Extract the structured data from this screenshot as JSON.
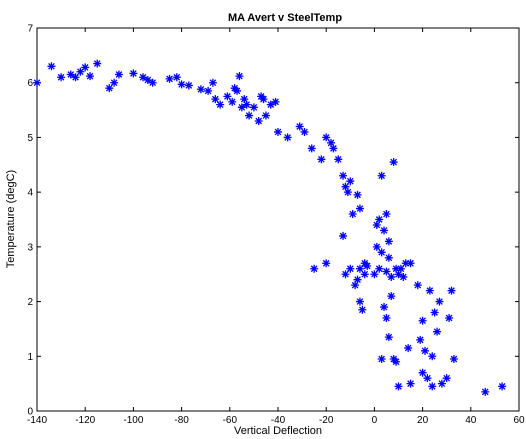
{
  "chart_data": {
    "type": "scatter",
    "title": "MA Avert v SteelTemp",
    "xlabel": "Vertical Deflection",
    "ylabel": "Temperature (degC)",
    "xlim": [
      -140,
      60
    ],
    "ylim": [
      0,
      7
    ],
    "xticks": [
      -140,
      -120,
      -100,
      -80,
      -60,
      -40,
      -20,
      0,
      20,
      40,
      60
    ],
    "yticks": [
      0,
      1,
      2,
      3,
      4,
      5,
      6,
      7
    ],
    "grid": false,
    "marker": "asterisk",
    "marker_color": "#0000ff",
    "points": [
      [
        -140,
        6.0
      ],
      [
        -134,
        6.3
      ],
      [
        -130,
        6.1
      ],
      [
        -126,
        6.15
      ],
      [
        -124,
        6.1
      ],
      [
        -122,
        6.2
      ],
      [
        -120,
        6.28
      ],
      [
        -118,
        6.12
      ],
      [
        -115,
        6.35
      ],
      [
        -110,
        5.9
      ],
      [
        -108,
        6.0
      ],
      [
        -106,
        6.15
      ],
      [
        -100,
        6.17
      ],
      [
        -96,
        6.1
      ],
      [
        -94,
        6.05
      ],
      [
        -92,
        6.0
      ],
      [
        -85,
        6.07
      ],
      [
        -82,
        6.1
      ],
      [
        -80,
        5.97
      ],
      [
        -77,
        5.95
      ],
      [
        -72,
        5.88
      ],
      [
        -69,
        5.85
      ],
      [
        -67,
        6.0
      ],
      [
        -66,
        5.7
      ],
      [
        -64,
        5.6
      ],
      [
        -61,
        5.75
      ],
      [
        -59,
        5.65
      ],
      [
        -58,
        5.9
      ],
      [
        -57,
        5.85
      ],
      [
        -56,
        6.12
      ],
      [
        -55,
        5.55
      ],
      [
        -54,
        5.7
      ],
      [
        -53,
        5.6
      ],
      [
        -52,
        5.4
      ],
      [
        -50,
        5.55
      ],
      [
        -48,
        5.3
      ],
      [
        -47,
        5.75
      ],
      [
        -46,
        5.7
      ],
      [
        -45,
        5.4
      ],
      [
        -43,
        5.6
      ],
      [
        -41,
        5.65
      ],
      [
        -40,
        5.1
      ],
      [
        -36,
        5.0
      ],
      [
        -31,
        5.2
      ],
      [
        -29,
        5.1
      ],
      [
        -26,
        4.8
      ],
      [
        -22,
        4.6
      ],
      [
        -20,
        5.0
      ],
      [
        -18,
        4.9
      ],
      [
        -17,
        4.8
      ],
      [
        -15,
        4.6
      ],
      [
        -13,
        4.3
      ],
      [
        -12,
        4.1
      ],
      [
        -11,
        4.0
      ],
      [
        -10,
        4.2
      ],
      [
        -9,
        3.6
      ],
      [
        -7,
        3.95
      ],
      [
        -6,
        3.7
      ],
      [
        -25,
        2.6
      ],
      [
        -20,
        2.7
      ],
      [
        -13,
        3.2
      ],
      [
        -12,
        2.5
      ],
      [
        -10,
        2.6
      ],
      [
        -8,
        2.3
      ],
      [
        -7,
        2.4
      ],
      [
        -6,
        2.6
      ],
      [
        -4,
        2.7
      ],
      [
        -3,
        2.65
      ],
      [
        0,
        2.5
      ],
      [
        1,
        3.4
      ],
      [
        1,
        3.0
      ],
      [
        2,
        2.6
      ],
      [
        2,
        3.5
      ],
      [
        3,
        4.3
      ],
      [
        3,
        2.9
      ],
      [
        4,
        3.3
      ],
      [
        5,
        3.6
      ],
      [
        5,
        2.55
      ],
      [
        6,
        3.1
      ],
      [
        6,
        2.8
      ],
      [
        7,
        2.45
      ],
      [
        8,
        4.55
      ],
      [
        9,
        2.6
      ],
      [
        10,
        2.5
      ],
      [
        11,
        2.6
      ],
      [
        12,
        2.45
      ],
      [
        13,
        2.7
      ],
      [
        15,
        2.7
      ],
      [
        -6,
        2.0
      ],
      [
        -5,
        1.85
      ],
      [
        -4,
        2.5
      ],
      [
        3,
        0.95
      ],
      [
        4,
        1.9
      ],
      [
        5,
        1.7
      ],
      [
        6,
        1.35
      ],
      [
        7,
        2.1
      ],
      [
        8,
        0.95
      ],
      [
        9,
        0.9
      ],
      [
        10,
        0.45
      ],
      [
        14,
        1.15
      ],
      [
        15,
        0.5
      ],
      [
        18,
        2.3
      ],
      [
        19,
        1.3
      ],
      [
        20,
        0.7
      ],
      [
        20,
        1.65
      ],
      [
        21,
        1.1
      ],
      [
        22,
        0.6
      ],
      [
        23,
        2.2
      ],
      [
        24,
        1.0
      ],
      [
        24,
        0.45
      ],
      [
        25,
        1.8
      ],
      [
        26,
        1.45
      ],
      [
        27,
        2.0
      ],
      [
        28,
        0.5
      ],
      [
        30,
        0.6
      ],
      [
        31,
        1.7
      ],
      [
        32,
        2.2
      ],
      [
        33,
        0.95
      ],
      [
        46,
        0.35
      ],
      [
        53,
        0.45
      ]
    ]
  }
}
